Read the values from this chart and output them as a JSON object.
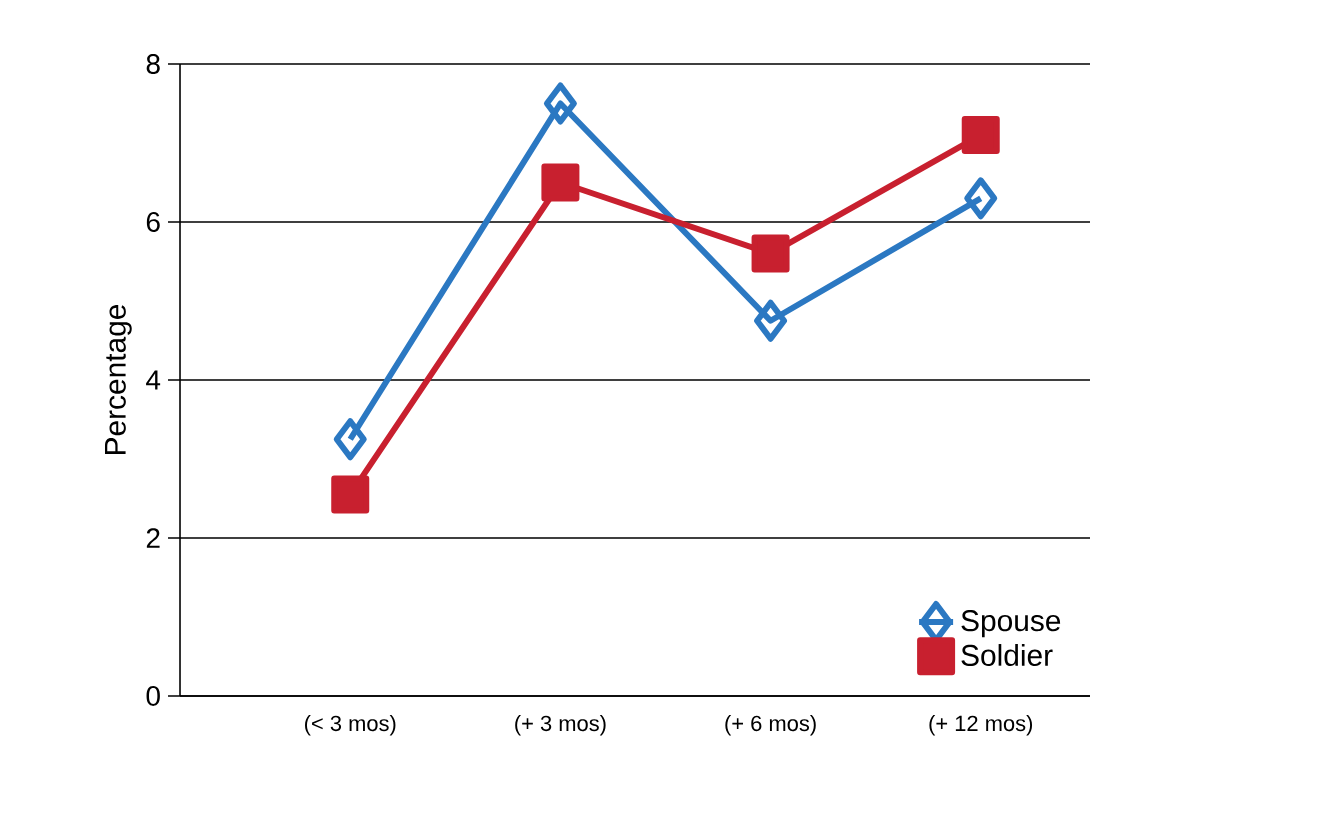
{
  "chart_data": {
    "type": "line",
    "ylabel": "Percentage",
    "categories": [
      "(< 3 mos)",
      "(+ 3 mos)",
      "(+ 6 mos)",
      "(+ 12 mos)"
    ],
    "series": [
      {
        "name": "Spouse",
        "color": "#2b78c2",
        "marker": "diamond",
        "values": [
          3.25,
          7.5,
          4.75,
          6.3
        ]
      },
      {
        "name": "Soldier",
        "color": "#c8202f",
        "marker": "square",
        "values": [
          2.55,
          6.5,
          5.6,
          7.1
        ]
      }
    ],
    "ylim": [
      0,
      8
    ],
    "yticks": [
      0,
      2,
      4,
      6,
      8
    ],
    "grid": "y",
    "legend": "bottom right",
    "line_style": "solid"
  }
}
